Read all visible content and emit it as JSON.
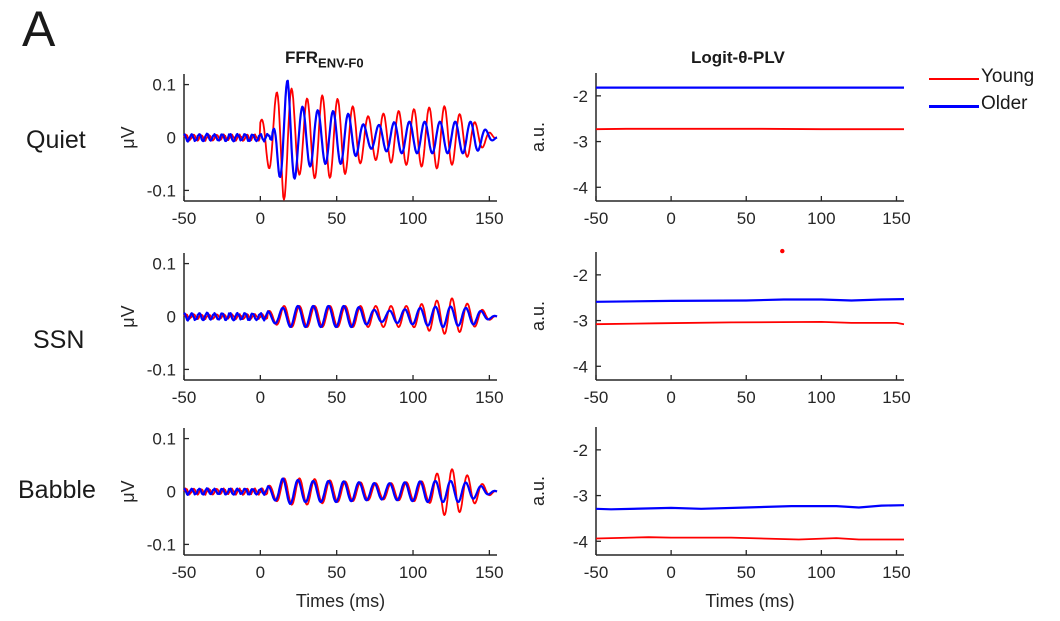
{
  "figure": {
    "panel_letter": "A",
    "row_labels": [
      "Quiet",
      "SSN",
      "Babble"
    ],
    "columns": [
      {
        "title_main": "FFR",
        "title_sub": "ENV-F0"
      },
      {
        "title_main": "Logit-θ-PLV",
        "title_sub": ""
      }
    ],
    "legend": [
      {
        "label": "Young",
        "color": "#ff0000"
      },
      {
        "label": "Older",
        "color": "#0000ff"
      }
    ]
  },
  "chart_data": [
    {
      "type": "line",
      "panel": "FFR-Quiet",
      "title": "FFR ENV-F0",
      "condition": "Quiet",
      "xlabel": "",
      "ylabel": "μV",
      "xlim": [
        -50,
        155
      ],
      "ylim": [
        -0.12,
        0.12
      ],
      "xticks": [
        -50,
        0,
        50,
        100,
        150
      ],
      "yticks": [
        -0.1,
        0,
        0.1
      ],
      "yticklabels": [
        "-0.1",
        "0",
        "0.1"
      ],
      "series": [
        {
          "name": "Young",
          "color": "#ff0000",
          "waveform": {
            "freq_hz": 100,
            "onset_ms": 0,
            "pre_amp": 0.005,
            "envelope": [
              [
                0,
                0.03
              ],
              [
                10,
                0.08
              ],
              [
                15,
                0.12
              ],
              [
                25,
                0.07
              ],
              [
                40,
                0.08
              ],
              [
                55,
                0.07
              ],
              [
                70,
                0.04
              ],
              [
                90,
                0.05
              ],
              [
                120,
                0.06
              ],
              [
                140,
                0.03
              ],
              [
                155,
                0.0
              ]
            ]
          }
        },
        {
          "name": "Older",
          "color": "#0000ff",
          "waveform": {
            "freq_hz": 100,
            "onset_ms": 8,
            "pre_amp": 0.006,
            "envelope": [
              [
                8,
                0.01
              ],
              [
                12,
                0.07
              ],
              [
                18,
                0.11
              ],
              [
                25,
                0.06
              ],
              [
                40,
                0.05
              ],
              [
                55,
                0.05
              ],
              [
                70,
                0.02
              ],
              [
                90,
                0.03
              ],
              [
                120,
                0.03
              ],
              [
                140,
                0.03
              ],
              [
                155,
                0.0
              ]
            ]
          }
        }
      ]
    },
    {
      "type": "line",
      "panel": "PLV-Quiet",
      "title": "Logit-θ-PLV",
      "condition": "Quiet",
      "ylabel": "a.u.",
      "xlim": [
        -50,
        155
      ],
      "ylim": [
        -4.3,
        -1.5
      ],
      "xticks": [
        -50,
        0,
        50,
        100,
        150
      ],
      "yticks": [
        -4,
        -3,
        -2
      ],
      "series": [
        {
          "name": "Young",
          "color": "#ff0000",
          "x": [
            -50,
            -30,
            0,
            60,
            100,
            155
          ],
          "y": [
            -2.73,
            -2.72,
            -2.72,
            -2.72,
            -2.73,
            -2.73
          ]
        },
        {
          "name": "Older",
          "color": "#0000ff",
          "x": [
            -50,
            0,
            50,
            100,
            155
          ],
          "y": [
            -1.82,
            -1.82,
            -1.82,
            -1.82,
            -1.82
          ]
        }
      ]
    },
    {
      "type": "line",
      "panel": "FFR-SSN",
      "condition": "SSN",
      "ylabel": "μV",
      "xlim": [
        -50,
        155
      ],
      "ylim": [
        -0.12,
        0.12
      ],
      "xticks": [
        -50,
        0,
        50,
        100,
        150
      ],
      "yticks": [
        -0.1,
        0,
        0.1
      ],
      "series": [
        {
          "name": "Young",
          "color": "#ff0000",
          "waveform": {
            "freq_hz": 100,
            "onset_ms": 5,
            "pre_amp": 0.004,
            "envelope": [
              [
                5,
                0.01
              ],
              [
                15,
                0.02
              ],
              [
                40,
                0.02
              ],
              [
                60,
                0.02
              ],
              [
                80,
                0.02
              ],
              [
                100,
                0.02
              ],
              [
                115,
                0.03
              ],
              [
                125,
                0.035
              ],
              [
                140,
                0.02
              ],
              [
                155,
                0.0
              ]
            ]
          }
        },
        {
          "name": "Older",
          "color": "#0000ff",
          "waveform": {
            "freq_hz": 100,
            "onset_ms": 5,
            "pre_amp": 0.006,
            "envelope": [
              [
                5,
                0.01
              ],
              [
                20,
                0.02
              ],
              [
                40,
                0.02
              ],
              [
                60,
                0.02
              ],
              [
                80,
                0.01
              ],
              [
                100,
                0.015
              ],
              [
                120,
                0.02
              ],
              [
                140,
                0.015
              ],
              [
                155,
                0.0
              ]
            ]
          }
        }
      ]
    },
    {
      "type": "line",
      "panel": "PLV-SSN",
      "condition": "SSN",
      "ylabel": "a.u.",
      "xlim": [
        -50,
        155
      ],
      "ylim": [
        -4.3,
        -1.5
      ],
      "xticks": [
        -50,
        0,
        50,
        100,
        150
      ],
      "yticks": [
        -4,
        -3,
        -2
      ],
      "series": [
        {
          "name": "Young",
          "color": "#ff0000",
          "x": [
            -50,
            -10,
            40,
            100,
            120,
            150,
            155
          ],
          "y": [
            -3.08,
            -3.06,
            -3.04,
            -3.03,
            -3.05,
            -3.05,
            -3.08
          ]
        },
        {
          "name": "Older",
          "color": "#0000ff",
          "x": [
            -50,
            0,
            50,
            75,
            100,
            120,
            140,
            155
          ],
          "y": [
            -2.59,
            -2.57,
            -2.56,
            -2.54,
            -2.54,
            -2.56,
            -2.54,
            -2.53
          ]
        }
      ],
      "annotation_point": {
        "x": 74,
        "y": -1.48,
        "color": "#ff0000"
      }
    },
    {
      "type": "line",
      "panel": "FFR-Babble",
      "condition": "Babble",
      "xlabel": "Times (ms)",
      "ylabel": "μV",
      "xlim": [
        -50,
        155
      ],
      "ylim": [
        -0.12,
        0.12
      ],
      "xticks": [
        -50,
        0,
        50,
        100,
        150
      ],
      "yticks": [
        -0.1,
        0,
        0.1
      ],
      "series": [
        {
          "name": "Young",
          "color": "#ff0000",
          "waveform": {
            "freq_hz": 100,
            "onset_ms": 5,
            "pre_amp": 0.005,
            "envelope": [
              [
                5,
                0.01
              ],
              [
                15,
                0.025
              ],
              [
                30,
                0.025
              ],
              [
                50,
                0.02
              ],
              [
                80,
                0.015
              ],
              [
                110,
                0.02
              ],
              [
                120,
                0.045
              ],
              [
                130,
                0.04
              ],
              [
                145,
                0.015
              ],
              [
                155,
                0.0
              ]
            ]
          }
        },
        {
          "name": "Older",
          "color": "#0000ff",
          "waveform": {
            "freq_hz": 100,
            "onset_ms": 5,
            "pre_amp": 0.005,
            "envelope": [
              [
                5,
                0.01
              ],
              [
                15,
                0.025
              ],
              [
                30,
                0.02
              ],
              [
                50,
                0.02
              ],
              [
                80,
                0.015
              ],
              [
                110,
                0.02
              ],
              [
                130,
                0.02
              ],
              [
                145,
                0.01
              ],
              [
                155,
                0.0
              ]
            ]
          }
        }
      ]
    },
    {
      "type": "line",
      "panel": "PLV-Babble",
      "condition": "Babble",
      "xlabel": "Times (ms)",
      "ylabel": "a.u.",
      "xlim": [
        -50,
        155
      ],
      "ylim": [
        -4.3,
        -1.5
      ],
      "xticks": [
        -50,
        0,
        50,
        100,
        150
      ],
      "yticks": [
        -4,
        -3,
        -2
      ],
      "series": [
        {
          "name": "Young",
          "color": "#ff0000",
          "x": [
            -50,
            -15,
            0,
            40,
            85,
            110,
            125,
            155
          ],
          "y": [
            -3.94,
            -3.91,
            -3.92,
            -3.92,
            -3.96,
            -3.93,
            -3.96,
            -3.96
          ]
        },
        {
          "name": "Older",
          "color": "#0000ff",
          "x": [
            -50,
            -40,
            0,
            20,
            50,
            80,
            110,
            125,
            140,
            155
          ],
          "y": [
            -3.29,
            -3.3,
            -3.27,
            -3.29,
            -3.26,
            -3.23,
            -3.23,
            -3.26,
            -3.22,
            -3.21
          ]
        }
      ]
    }
  ]
}
